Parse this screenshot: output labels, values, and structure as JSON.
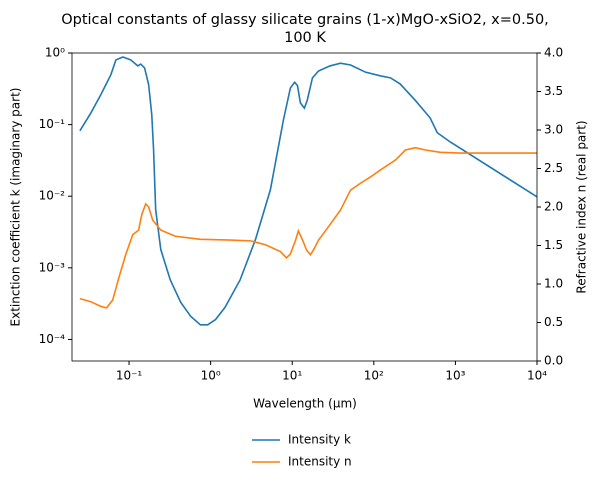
{
  "chart_data": {
    "type": "line",
    "title": [
      "Optical constants of glassy silicate grains (1-x)MgO-xSiO2, x=0.50,",
      "100 K"
    ],
    "xlabel": "Wavelength (μm)",
    "ylabel": "Extinction coefficient k (imaginary part)",
    "y2label": "Refractive index n (real part)",
    "xscale": "log",
    "yscale": "log",
    "xlim": [
      0.02,
      10000
    ],
    "xticks": [
      {
        "value": 0.1,
        "label": "10⁻¹"
      },
      {
        "value": 1,
        "label": "10⁰"
      },
      {
        "value": 10,
        "label": "10¹"
      },
      {
        "value": 100,
        "label": "10²"
      },
      {
        "value": 1000,
        "label": "10³"
      },
      {
        "value": 10000,
        "label": "10⁴"
      }
    ],
    "ylim": [
      5e-05,
      1
    ],
    "yticks": [
      {
        "value": 0.0001,
        "label": "10⁻⁴"
      },
      {
        "value": 0.001,
        "label": "10⁻³"
      },
      {
        "value": 0.01,
        "label": "10⁻²"
      },
      {
        "value": 0.1,
        "label": "10⁻¹"
      },
      {
        "value": 1,
        "label": "10⁰"
      }
    ],
    "y2lim": [
      0,
      4
    ],
    "y2ticks": [
      {
        "value": 0,
        "label": "0.0"
      },
      0.5,
      {
        "value": 1,
        "label": "1.0"
      },
      1.5,
      {
        "value": 2,
        "label": "2.0"
      },
      2.5,
      {
        "value": 3,
        "label": "3.0"
      },
      3.5,
      {
        "value": 4,
        "label": "4.0"
      }
    ],
    "legend": "lower center outside",
    "series": [
      {
        "name": "Intensity k",
        "color": "#1f77b4",
        "x": [
          0.025,
          0.034,
          0.045,
          0.06,
          0.069,
          0.084,
          0.105,
          0.128,
          0.139,
          0.155,
          0.174,
          0.19,
          0.2,
          0.212,
          0.245,
          0.32,
          0.43,
          0.57,
          0.75,
          0.92,
          1.15,
          1.5,
          2.3,
          3.55,
          5.4,
          7.8,
          9.5,
          10.7,
          11.6,
          12.6,
          14.1,
          15.3,
          17.7,
          21,
          29,
          39,
          52,
          79,
          120,
          160,
          210,
          320,
          490,
          600,
          870,
          10000
        ],
        "values": [
          0.082,
          0.145,
          0.26,
          0.5,
          0.8,
          0.88,
          0.8,
          0.66,
          0.7,
          0.62,
          0.36,
          0.137,
          0.044,
          0.0065,
          0.0018,
          0.00068,
          0.00033,
          0.00021,
          0.00016,
          0.00016,
          0.00019,
          0.00028,
          0.00068,
          0.0025,
          0.0123,
          0.116,
          0.325,
          0.39,
          0.35,
          0.2,
          0.17,
          0.22,
          0.45,
          0.56,
          0.66,
          0.72,
          0.68,
          0.54,
          0.48,
          0.45,
          0.37,
          0.22,
          0.124,
          0.077,
          0.057,
          0.0098
        ]
      },
      {
        "name": "Intensity n",
        "color": "#ff7f0e",
        "axis": "y2",
        "x": [
          0.025,
          0.034,
          0.045,
          0.053,
          0.063,
          0.075,
          0.091,
          0.111,
          0.131,
          0.143,
          0.16,
          0.174,
          0.195,
          0.245,
          0.37,
          0.75,
          1.76,
          3.1,
          4.7,
          7.2,
          8.5,
          9.5,
          11,
          11.9,
          13.4,
          15,
          16.7,
          18.2,
          21,
          29,
          39,
          45,
          52,
          69,
          91,
          120,
          184,
          244,
          323,
          428,
          653,
          1150,
          10000
        ],
        "values": [
          0.81,
          0.77,
          0.71,
          0.69,
          0.79,
          1.08,
          1.38,
          1.64,
          1.7,
          1.9,
          2.04,
          2.0,
          1.83,
          1.7,
          1.62,
          1.58,
          1.57,
          1.56,
          1.51,
          1.42,
          1.34,
          1.39,
          1.57,
          1.69,
          1.57,
          1.44,
          1.38,
          1.44,
          1.57,
          1.77,
          1.96,
          2.09,
          2.22,
          2.31,
          2.39,
          2.48,
          2.61,
          2.74,
          2.77,
          2.74,
          2.71,
          2.7,
          2.7
        ]
      }
    ]
  }
}
